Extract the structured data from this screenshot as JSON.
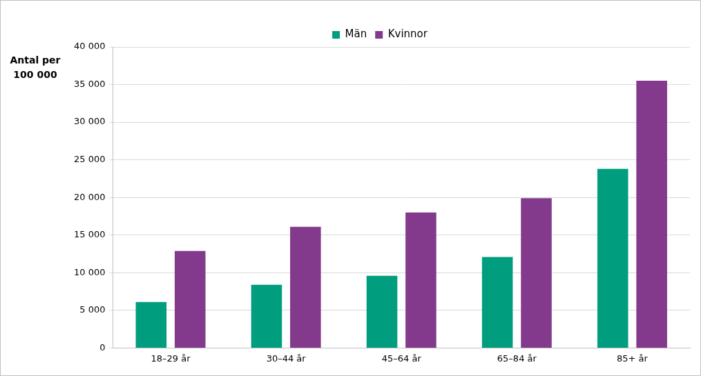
{
  "chart_data": {
    "type": "bar",
    "ylabel": "Antal per\n100 000",
    "categories": [
      "18–29 år",
      "30–44 år",
      "45–64 år",
      "65–84 år",
      "85+ år"
    ],
    "series": [
      {
        "name": "Män",
        "color": "#009e7e",
        "values": [
          6100,
          8400,
          9600,
          12100,
          23800
        ]
      },
      {
        "name": "Kvinnor",
        "color": "#833a8d",
        "values": [
          12900,
          16100,
          18000,
          19900,
          35500
        ]
      }
    ],
    "ylim": [
      0,
      40000
    ],
    "yticks": [
      0,
      {
        "value": 5000,
        "label": "5 000"
      },
      {
        "value": 10000,
        "label": "10 000"
      },
      {
        "value": 15000,
        "label": "15 000"
      },
      {
        "value": 20000,
        "label": "20 000"
      },
      {
        "value": 25000,
        "label": "25 000"
      },
      {
        "value": 30000,
        "label": "30 000"
      },
      {
        "value": 35000,
        "label": "35 000"
      },
      {
        "value": 40000,
        "label": "40 000"
      }
    ],
    "grid": true,
    "legend": "top"
  }
}
